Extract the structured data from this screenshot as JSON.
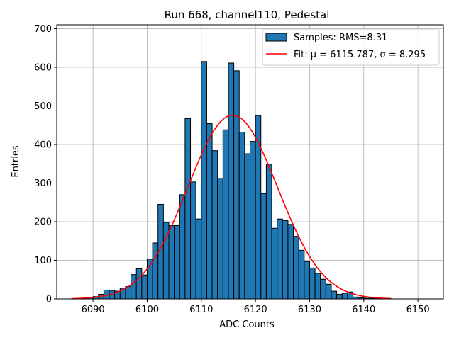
{
  "chart_data": {
    "type": "bar",
    "title": "Run 668, channel110, Pedestal",
    "xlabel": "ADC Counts",
    "ylabel": "Entries",
    "xlim": [
      6083.3,
      6154.7
    ],
    "ylim": [
      0,
      710
    ],
    "xticks": [
      "6090",
      "6100",
      "6110",
      "6120",
      "6130",
      "6140",
      "6150"
    ],
    "yticks": [
      "0",
      "100",
      "200",
      "300",
      "400",
      "500",
      "600",
      "700"
    ],
    "grid": true,
    "legend_position": "top-right",
    "bin_width": 1,
    "colors": {
      "bars": "#1f77b4",
      "bar_edge": "#000000",
      "fit": "#ff0000",
      "grid": "#b0b0b0"
    },
    "series": [
      {
        "name": "Samples: RMS=8.31",
        "type": "histogram",
        "bin_starts": [
          6089,
          6090,
          6091,
          6092,
          6093,
          6094,
          6095,
          6096,
          6097,
          6098,
          6099,
          6100,
          6101,
          6102,
          6103,
          6104,
          6105,
          6106,
          6107,
          6108,
          6109,
          6110,
          6111,
          6112,
          6113,
          6114,
          6115,
          6116,
          6117,
          6118,
          6119,
          6120,
          6121,
          6122,
          6123,
          6124,
          6125,
          6126,
          6127,
          6128,
          6129,
          6130,
          6131,
          6132,
          6133,
          6134,
          6135,
          6136,
          6137,
          6138,
          6139,
          6140,
          6141,
          6142,
          6143,
          6144
        ],
        "values": [
          3,
          6,
          12,
          23,
          22,
          20,
          28,
          32,
          63,
          78,
          62,
          103,
          145,
          245,
          198,
          190,
          190,
          270,
          467,
          303,
          207,
          615,
          454,
          384,
          312,
          438,
          611,
          591,
          432,
          376,
          408,
          475,
          273,
          349,
          183,
          207,
          203,
          193,
          162,
          126,
          97,
          80,
          66,
          51,
          38,
          20,
          12,
          15,
          18,
          5,
          3,
          2,
          2,
          1,
          1,
          1
        ]
      },
      {
        "name": "Fit: μ = 6115.787, σ = 8.295",
        "type": "gaussian",
        "mu": 6115.787,
        "sigma": 8.295,
        "amplitude": 476,
        "x_range": [
          6086,
          6145
        ]
      }
    ]
  }
}
